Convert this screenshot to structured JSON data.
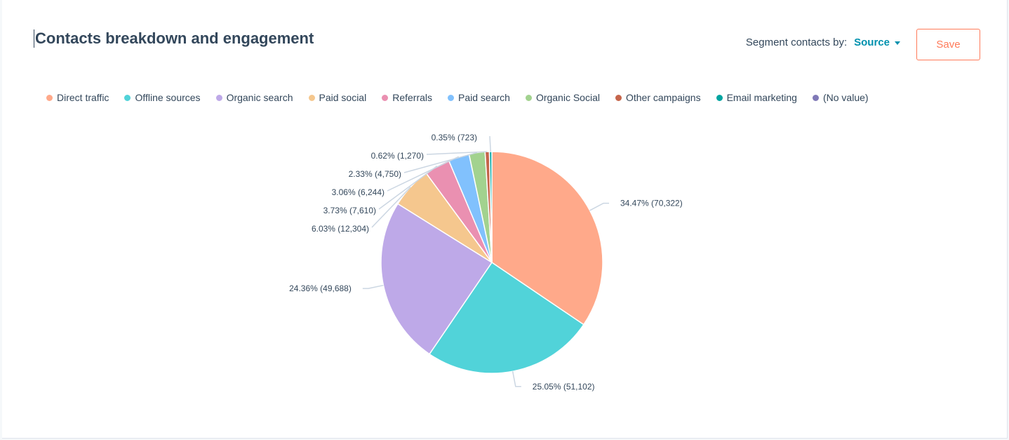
{
  "header": {
    "title": "Contacts breakdown and engagement",
    "segment_label": "Segment contacts by:",
    "segment_value": "Source",
    "save_label": "Save"
  },
  "colors": {
    "text": "#33475b",
    "accent": "#0091ae",
    "save": "#ff7a59"
  },
  "chart_data": {
    "type": "pie",
    "legend_position": "top",
    "slices": [
      {
        "name": "Direct traffic",
        "percent": 34.47,
        "value": 70322,
        "label": "34.47% (70,322)",
        "color": "#ffa98a"
      },
      {
        "name": "Offline sources",
        "percent": 25.05,
        "value": 51102,
        "label": "25.05% (51,102)",
        "color": "#51d3d9"
      },
      {
        "name": "Organic search",
        "percent": 24.36,
        "value": 49688,
        "label": "24.36% (49,688)",
        "color": "#bea9e8"
      },
      {
        "name": "Paid social",
        "percent": 6.03,
        "value": 12304,
        "label": "6.03% (12,304)",
        "color": "#f5c78e"
      },
      {
        "name": "Referrals",
        "percent": 3.73,
        "value": 7610,
        "label": "3.73% (7,610)",
        "color": "#ea90b1"
      },
      {
        "name": "Paid search",
        "percent": 3.06,
        "value": 6244,
        "label": "3.06% (6,244)",
        "color": "#81c1fd"
      },
      {
        "name": "Organic Social",
        "percent": 2.33,
        "value": 4750,
        "label": "2.33% (4,750)",
        "color": "#a2d28f"
      },
      {
        "name": "Other campaigns",
        "percent": 0.62,
        "value": 1270,
        "label": "0.62% (1,270)",
        "color": "#c5654b"
      },
      {
        "name": "Email marketing",
        "percent": 0.35,
        "value": 723,
        "label": "0.35% (723)",
        "color": "#00a4a0"
      },
      {
        "name": "(No value)",
        "percent": 0,
        "value": 0,
        "label": "",
        "color": "#8079b7"
      }
    ]
  }
}
